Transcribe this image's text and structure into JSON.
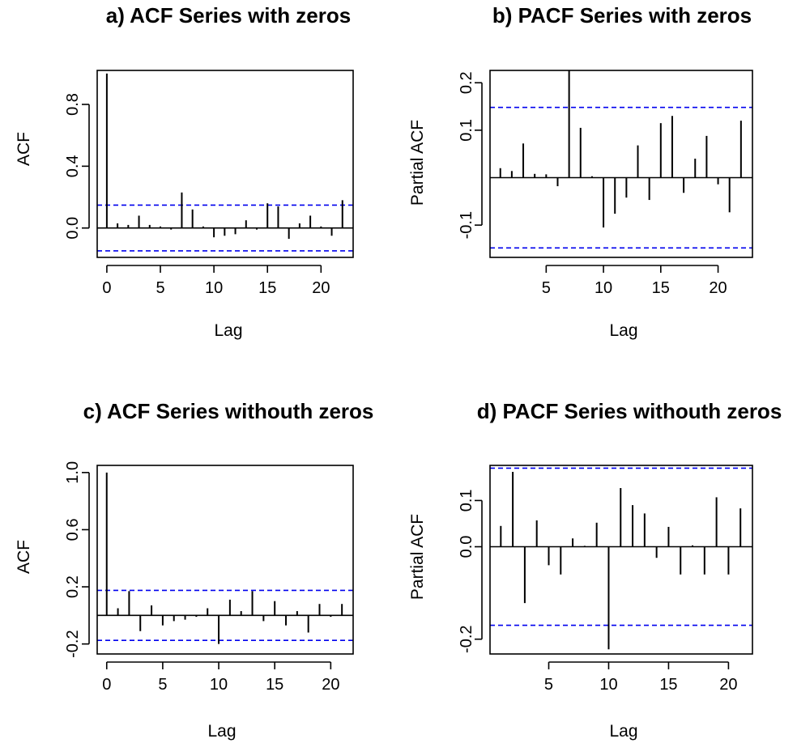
{
  "chart_data": [
    {
      "type": "bar",
      "title": "a) ACF Series with zeros",
      "xlabel": "Lag",
      "ylabel": "ACF",
      "xlim": [
        -0.9,
        23
      ],
      "ylim": [
        -0.19,
        1.02
      ],
      "xticks": [
        "0",
        "5",
        "10",
        "15",
        "20"
      ],
      "yticks": [
        "0.0",
        "0.4",
        "0.8"
      ],
      "lags": [
        0,
        1,
        2,
        3,
        4,
        5,
        6,
        7,
        8,
        9,
        10,
        11,
        12,
        13,
        14,
        15,
        16,
        17,
        18,
        19,
        20,
        21,
        22
      ],
      "values": [
        1.0,
        0.03,
        0.02,
        0.08,
        0.02,
        0.01,
        -0.01,
        0.23,
        0.12,
        0.01,
        -0.06,
        -0.05,
        -0.04,
        0.05,
        -0.01,
        0.16,
        0.14,
        -0.07,
        0.03,
        0.08,
        0.01,
        -0.05,
        0.18
      ],
      "conf_limit": 0.148,
      "colors": {
        "bars": "#000000",
        "bounds": "#0000ee"
      }
    },
    {
      "type": "bar",
      "title": "b) PACF Series with zeros",
      "xlabel": "Lag",
      "ylabel": "Partial ACF",
      "xlim": [
        0.1,
        23
      ],
      "ylim": [
        -0.168,
        0.226
      ],
      "xticks": [
        "5",
        "10",
        "15",
        "20"
      ],
      "yticks": [
        "-0.1",
        "0.1",
        "0.2"
      ],
      "lags": [
        1,
        2,
        3,
        4,
        5,
        6,
        7,
        8,
        9,
        10,
        11,
        12,
        13,
        14,
        15,
        16,
        17,
        18,
        19,
        20,
        21,
        22
      ],
      "values": [
        0.02,
        0.014,
        0.072,
        0.008,
        0.007,
        -0.018,
        0.226,
        0.105,
        0.003,
        -0.105,
        -0.076,
        -0.042,
        0.068,
        -0.047,
        0.115,
        0.13,
        -0.032,
        0.04,
        0.088,
        -0.014,
        -0.073,
        0.12
      ],
      "conf_limit": 0.148,
      "colors": {
        "bars": "#000000",
        "bounds": "#0000ee"
      }
    },
    {
      "type": "bar",
      "title": "c) ACF Series withouth zeros",
      "xlabel": "Lag",
      "ylabel": "ACF",
      "xlim": [
        -0.85,
        22
      ],
      "ylim": [
        -0.27,
        1.05
      ],
      "xticks": [
        "0",
        "5",
        "10",
        "15",
        "20"
      ],
      "yticks": [
        "-0.2",
        "0.2",
        "0.6",
        "1.0"
      ],
      "lags": [
        0,
        1,
        2,
        3,
        4,
        5,
        6,
        7,
        8,
        9,
        10,
        11,
        12,
        13,
        14,
        15,
        16,
        17,
        18,
        19,
        20,
        21
      ],
      "values": [
        1.0,
        0.05,
        0.17,
        -0.11,
        0.07,
        -0.07,
        -0.04,
        -0.03,
        -0.01,
        0.05,
        -0.2,
        0.11,
        0.03,
        0.17,
        -0.04,
        0.1,
        -0.07,
        0.03,
        -0.12,
        0.08,
        -0.01,
        0.08
      ],
      "conf_limit": 0.175,
      "colors": {
        "bars": "#000000",
        "bounds": "#0000ee"
      }
    },
    {
      "type": "bar",
      "title": "d) PACF Series withouth zeros",
      "xlabel": "Lag",
      "ylabel": "Partial ACF",
      "xlim": [
        0.1,
        22
      ],
      "ylim": [
        -0.232,
        0.176
      ],
      "xticks": [
        "5",
        "10",
        "15",
        "20"
      ],
      "yticks": [
        "-0.2",
        "0.0",
        "0.1"
      ],
      "lags": [
        1,
        2,
        3,
        4,
        5,
        6,
        7,
        8,
        9,
        10,
        11,
        12,
        13,
        14,
        15,
        16,
        17,
        18,
        19,
        20,
        21
      ],
      "values": [
        0.045,
        0.162,
        -0.122,
        0.057,
        -0.04,
        -0.06,
        0.018,
        0.002,
        0.052,
        -0.222,
        0.127,
        0.09,
        0.072,
        -0.024,
        0.043,
        -0.06,
        0.003,
        -0.06,
        0.107,
        -0.06,
        0.083
      ],
      "conf_limit": 0.17,
      "colors": {
        "bars": "#000000",
        "bounds": "#0000ee"
      }
    }
  ]
}
